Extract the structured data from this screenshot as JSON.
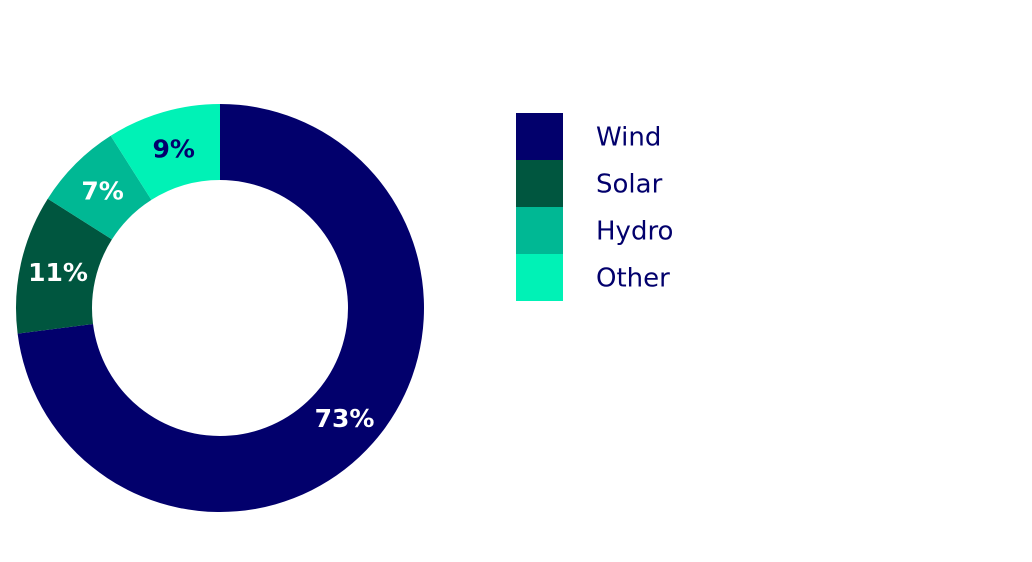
{
  "chart_data": {
    "type": "donut",
    "categories": [
      "Wind",
      "Solar",
      "Hydro",
      "Other"
    ],
    "values": [
      73,
      11,
      7,
      9
    ],
    "value_labels": [
      "73%",
      "11%",
      "7%",
      "9%"
    ],
    "colors": [
      "#02006c",
      "#00563f",
      "#00b894",
      "#00f2b6"
    ]
  }
}
